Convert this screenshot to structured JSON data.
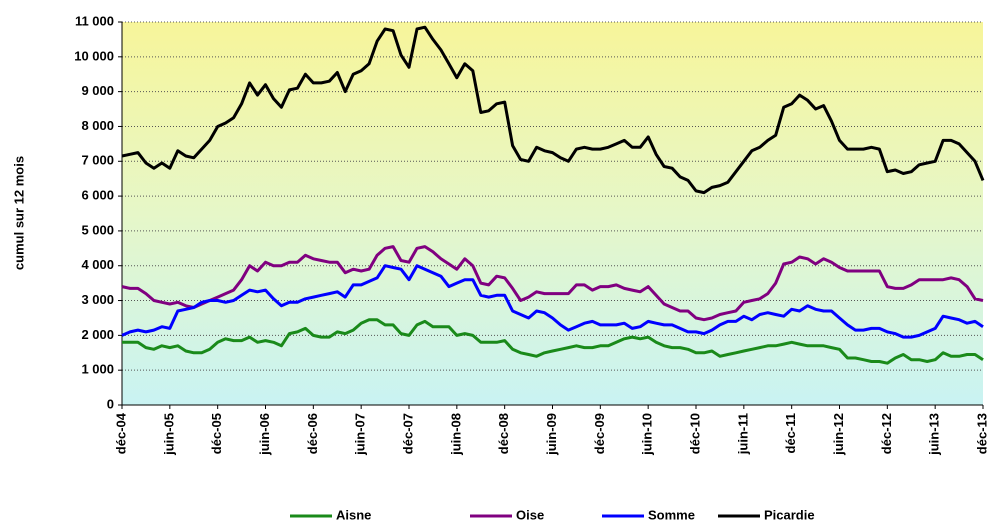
{
  "chart_data": {
    "type": "line",
    "y_label": "cumul sur 12 mois",
    "categories": [
      "déc-04",
      null,
      null,
      null,
      null,
      null,
      "juin-05",
      null,
      null,
      null,
      null,
      null,
      "déc-05",
      null,
      null,
      null,
      null,
      null,
      "juin-06",
      null,
      null,
      null,
      null,
      null,
      "déc-06",
      null,
      null,
      null,
      null,
      null,
      "juin-07",
      null,
      null,
      null,
      null,
      null,
      "déc-07",
      null,
      null,
      null,
      null,
      null,
      "juin-08",
      null,
      null,
      null,
      null,
      null,
      "déc-08",
      null,
      null,
      null,
      null,
      null,
      "juin-09",
      null,
      null,
      null,
      null,
      null,
      "déc-09",
      null,
      null,
      null,
      null,
      null,
      "juin-10",
      null,
      null,
      null,
      null,
      null,
      "déc-10",
      null,
      null,
      null,
      null,
      null,
      "juin-11",
      null,
      null,
      null,
      null,
      null,
      "déc-11",
      null,
      null,
      null,
      null,
      null,
      "juin-12",
      null,
      null,
      null,
      null,
      null,
      "déc-12",
      null,
      null,
      null,
      null,
      null,
      "juin-13",
      null,
      null,
      null,
      null,
      null,
      "déc-13"
    ],
    "series": [
      {
        "name": "Aisne",
        "color": "#1a8a1a",
        "values": [
          1800,
          1800,
          1800,
          1650,
          1600,
          1700,
          1650,
          1700,
          1550,
          1500,
          1500,
          1600,
          1800,
          1900,
          1850,
          1850,
          1950,
          1800,
          1850,
          1800,
          1700,
          2050,
          2100,
          2200,
          2000,
          1950,
          1950,
          2100,
          2050,
          2150,
          2350,
          2450,
          2450,
          2300,
          2300,
          2050,
          2000,
          2300,
          2400,
          2250,
          2250,
          2250,
          2000,
          2050,
          2000,
          1800,
          1800,
          1800,
          1850,
          1600,
          1500,
          1450,
          1400,
          1500,
          1550,
          1600,
          1650,
          1700,
          1650,
          1650,
          1700,
          1700,
          1800,
          1900,
          1950,
          1900,
          1950,
          1800,
          1700,
          1650,
          1650,
          1600,
          1500,
          1500,
          1550,
          1400,
          1450,
          1500,
          1550,
          1600,
          1650,
          1700,
          1700,
          1750,
          1800,
          1750,
          1700,
          1700,
          1700,
          1650,
          1600,
          1350,
          1350,
          1300,
          1250,
          1250,
          1200,
          1350,
          1450,
          1300,
          1300,
          1250,
          1300,
          1500,
          1400,
          1400,
          1450,
          1450,
          1300
        ]
      },
      {
        "name": "Oise",
        "color": "#800080",
        "values": [
          3400,
          3350,
          3350,
          3200,
          3000,
          2950,
          2900,
          2950,
          2850,
          2800,
          2900,
          3000,
          3100,
          3200,
          3300,
          3600,
          4000,
          3850,
          4100,
          4000,
          4000,
          4100,
          4100,
          4300,
          4200,
          4150,
          4100,
          4100,
          3800,
          3900,
          3850,
          3900,
          4300,
          4500,
          4550,
          4150,
          4100,
          4500,
          4550,
          4400,
          4200,
          4050,
          3900,
          4200,
          4000,
          3500,
          3450,
          3700,
          3650,
          3350,
          3000,
          3100,
          3250,
          3200,
          3200,
          3200,
          3200,
          3450,
          3450,
          3300,
          3400,
          3400,
          3450,
          3350,
          3300,
          3250,
          3400,
          3150,
          2900,
          2800,
          2700,
          2700,
          2500,
          2450,
          2500,
          2600,
          2650,
          2700,
          2950,
          3000,
          3050,
          3200,
          3500,
          4050,
          4100,
          4250,
          4200,
          4050,
          4200,
          4100,
          3950,
          3850,
          3850,
          3850,
          3850,
          3850,
          3400,
          3350,
          3350,
          3450,
          3600,
          3600,
          3600,
          3600,
          3650,
          3600,
          3400,
          3050,
          3000
        ]
      },
      {
        "name": "Somme",
        "color": "#0000ff",
        "values": [
          2000,
          2100,
          2150,
          2100,
          2150,
          2250,
          2200,
          2700,
          2750,
          2800,
          2950,
          3000,
          3000,
          2950,
          3000,
          3150,
          3300,
          3250,
          3300,
          3050,
          2850,
          2950,
          2950,
          3050,
          3100,
          3150,
          3200,
          3250,
          3100,
          3450,
          3450,
          3550,
          3650,
          4000,
          3950,
          3900,
          3600,
          4000,
          3900,
          3800,
          3700,
          3400,
          3500,
          3600,
          3600,
          3150,
          3100,
          3150,
          3150,
          2700,
          2600,
          2500,
          2700,
          2650,
          2500,
          2300,
          2150,
          2250,
          2350,
          2400,
          2300,
          2300,
          2300,
          2350,
          2200,
          2250,
          2400,
          2350,
          2300,
          2300,
          2200,
          2100,
          2100,
          2050,
          2150,
          2300,
          2400,
          2400,
          2550,
          2450,
          2600,
          2650,
          2600,
          2550,
          2750,
          2700,
          2850,
          2750,
          2700,
          2700,
          2500,
          2300,
          2150,
          2150,
          2200,
          2200,
          2100,
          2050,
          1950,
          1950,
          2000,
          2100,
          2200,
          2550,
          2500,
          2450,
          2350,
          2400,
          2250
        ]
      },
      {
        "name": "Picardie",
        "color": "#000000",
        "values": [
          7150,
          7200,
          7250,
          6950,
          6800,
          6950,
          6800,
          7300,
          7150,
          7100,
          7350,
          7600,
          8000,
          8100,
          8250,
          8650,
          9250,
          8900,
          9200,
          8800,
          8550,
          9050,
          9100,
          9500,
          9250,
          9250,
          9300,
          9550,
          9000,
          9500,
          9600,
          9800,
          10450,
          10800,
          10750,
          10050,
          9700,
          10800,
          10850,
          10500,
          10200,
          9800,
          9400,
          9800,
          9600,
          8400,
          8450,
          8650,
          8700,
          7450,
          7050,
          7000,
          7400,
          7300,
          7250,
          7100,
          7000,
          7350,
          7400,
          7350,
          7350,
          7400,
          7500,
          7600,
          7400,
          7400,
          7700,
          7200,
          6850,
          6800,
          6550,
          6450,
          6150,
          6100,
          6250,
          6300,
          6400,
          6700,
          7000,
          7300,
          7400,
          7600,
          7750,
          8550,
          8650,
          8900,
          8750,
          8500,
          8600,
          8150,
          7600,
          7350,
          7350,
          7350,
          7400,
          7350,
          6700,
          6750,
          6650,
          6700,
          6900,
          6950,
          7000,
          7600,
          7600,
          7500,
          7250,
          7000,
          6450
        ]
      }
    ],
    "ylim": [
      0,
      11000
    ],
    "yticks": [
      0,
      {
        "value": 1000,
        "label": "1 000"
      },
      {
        "value": 2000,
        "label": "2 000"
      },
      {
        "value": 3000,
        "label": "3 000"
      },
      {
        "value": 4000,
        "label": "4 000"
      },
      {
        "value": 5000,
        "label": "5 000"
      },
      {
        "value": 6000,
        "label": "6 000"
      },
      {
        "value": 7000,
        "label": "7 000"
      },
      {
        "value": 8000,
        "label": "8 000"
      },
      {
        "value": 9000,
        "label": "9 000"
      },
      {
        "value": 10000,
        "label": "10 000"
      },
      {
        "value": 11000,
        "label": "11 000"
      }
    ],
    "grid": true,
    "legend": "bottom"
  }
}
